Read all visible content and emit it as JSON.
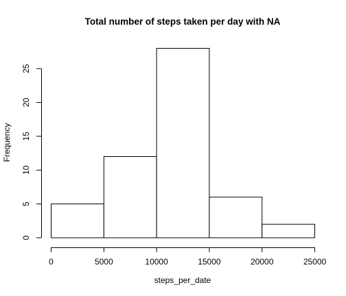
{
  "chart_data": {
    "type": "histogram",
    "title": "Total number of steps taken per day with NA",
    "xlabel": "steps_per_date",
    "ylabel": "Frequency",
    "bins": [
      {
        "start": 0,
        "end": 5000,
        "count": 5
      },
      {
        "start": 5000,
        "end": 10000,
        "count": 12
      },
      {
        "start": 10000,
        "end": 15000,
        "count": 28
      },
      {
        "start": 15000,
        "end": 20000,
        "count": 6
      },
      {
        "start": 20000,
        "end": 25000,
        "count": 2
      }
    ],
    "xlim": [
      0,
      25000
    ],
    "ylim": [
      0,
      28
    ],
    "x_ticks": [
      0,
      5000,
      10000,
      15000,
      20000,
      25000
    ],
    "x_tick_labels": [
      "0",
      "5000",
      "10000",
      "15000",
      "20000",
      "25000"
    ],
    "y_ticks": [
      0,
      5,
      10,
      15,
      20,
      25
    ],
    "y_tick_labels": [
      "0",
      "5",
      "10",
      "15",
      "20",
      "25"
    ],
    "bar_fill": "#ffffff",
    "bar_stroke": "#000000",
    "grid": false
  }
}
